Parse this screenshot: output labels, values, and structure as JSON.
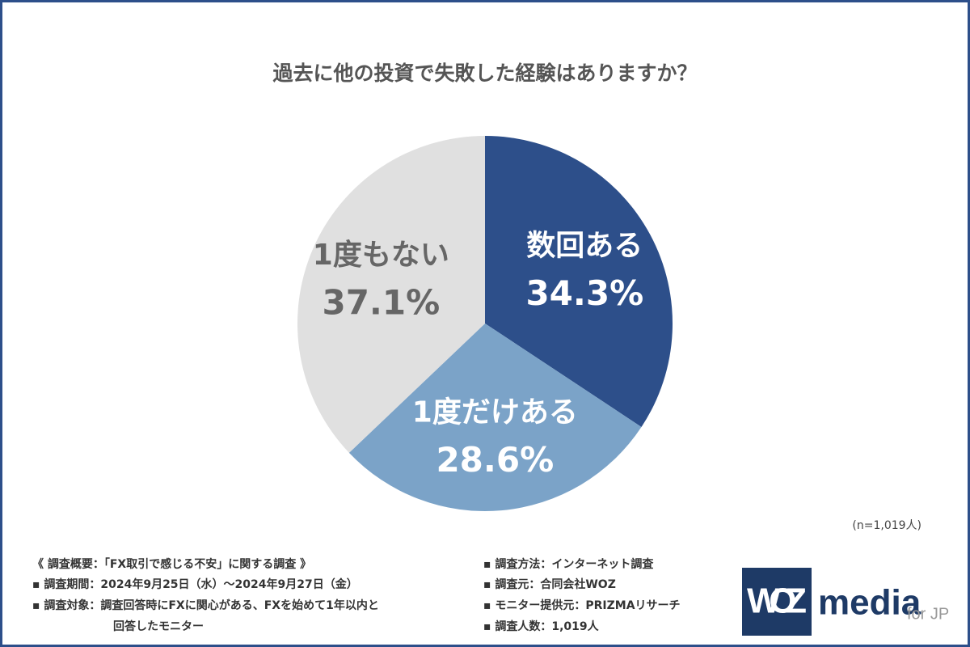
{
  "chart_data": {
    "type": "pie",
    "title": "過去に他の投資で失敗した経験はありますか？",
    "categories": [
      "数回ある",
      "1度だけある",
      "1度もない"
    ],
    "values": [
      34.3,
      28.6,
      37.1
    ],
    "value_labels": [
      "34.3%",
      "28.6%",
      "37.1%"
    ],
    "colors": [
      "#2d4f8a",
      "#7ba3c8",
      "#e0e0e0"
    ],
    "sample_note": "(n=1,019人)"
  },
  "footer": {
    "left": [
      "《 調査概要：「FX取引で感じる不安」に関する調査 》",
      "▪ 調査期間：2024年9月25日（水）〜2024年9月27日（金）",
      "▪ 調査対象：調査回答時にFXに関心がある、FXを始めて1年以内と",
      "回答したモニター"
    ],
    "right": [
      "▪ 調査方法：インターネット調査",
      "▪ 調査元：合同会社WOZ",
      "▪ モニター提供元：PRIZMAリサーチ",
      "▪ 調査人数：1,019人"
    ],
    "logo": {
      "mark": "WOZ",
      "name": "media",
      "suffix": "for JP"
    }
  }
}
